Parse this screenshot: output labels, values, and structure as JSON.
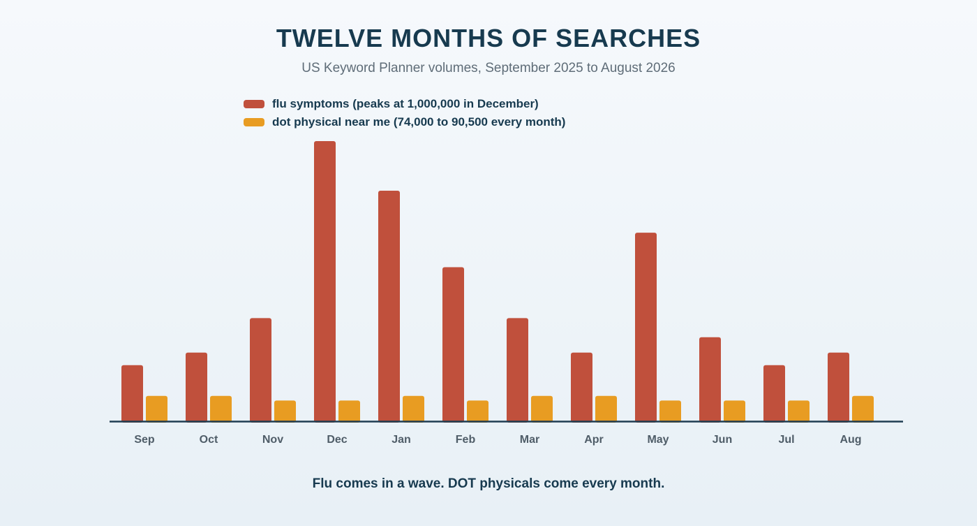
{
  "title": "TWELVE MONTHS OF SEARCHES",
  "subtitle": "US Keyword Planner volumes, September 2025 to August 2026",
  "caption": "Flu comes in a wave. DOT physicals come every month.",
  "colors": {
    "flu": "#c0503c",
    "dot": "#e89c22",
    "axis": "#1f3d52",
    "tick_label": "#4f5d68"
  },
  "legend": {
    "flu_label": "flu symptoms (peaks at 1,000,000 in December)",
    "dot_label": "dot physical near me (74,000 to 90,500 every month)"
  },
  "chart_data": {
    "type": "bar",
    "title": "TWELVE MONTHS OF SEARCHES",
    "subtitle": "US Keyword Planner volumes, September 2025 to August 2026",
    "categories": [
      "Sep",
      "Oct",
      "Nov",
      "Dec",
      "Jan",
      "Feb",
      "Mar",
      "Apr",
      "May",
      "Jun",
      "Jul",
      "Aug"
    ],
    "series": [
      {
        "name": "flu symptoms (peaks at 1,000,000 in December)",
        "values": [
          200000,
          245000,
          368000,
          1000000,
          823000,
          550000,
          368000,
          245000,
          673000,
          300000,
          200000,
          245000
        ]
      },
      {
        "name": "dot physical near me (74,000 to 90,500 every month)",
        "values": [
          90500,
          90500,
          74000,
          74000,
          90500,
          74000,
          90500,
          90500,
          74000,
          74000,
          74000,
          90500
        ]
      }
    ],
    "ylim": [
      0,
      1000000
    ],
    "grid": false,
    "legend_position": "top-left"
  }
}
